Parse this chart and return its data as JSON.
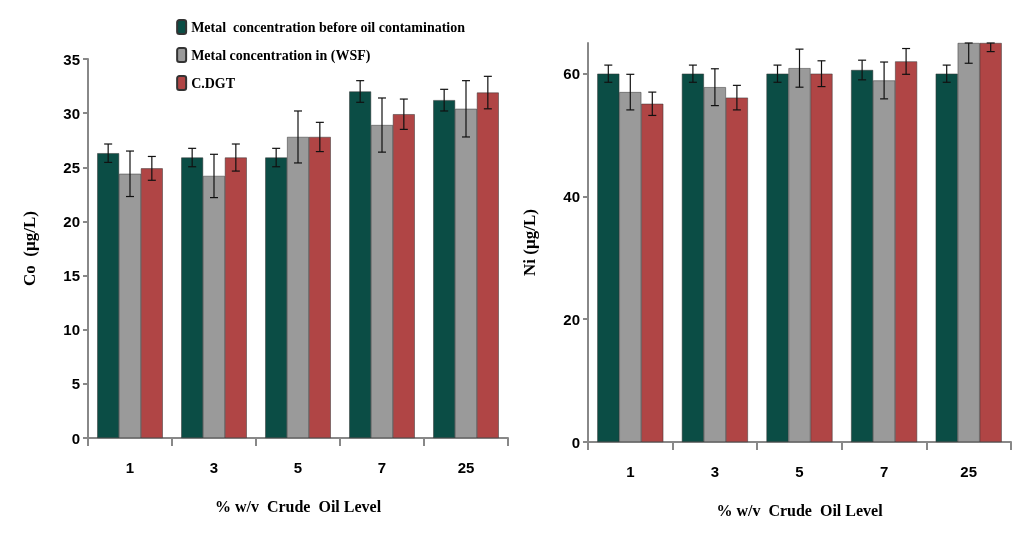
{
  "chart_data": [
    {
      "type": "bar",
      "xlabel": "% w/v  Crude  Oil Level",
      "ylabel": "Co  (µg/L)",
      "categories": [
        "1",
        "3",
        "5",
        "7",
        "25"
      ],
      "ylim": [
        0,
        35
      ],
      "yticks": [
        0,
        5,
        10,
        15,
        20,
        25,
        30,
        35
      ],
      "grid": false,
      "legend": "top right",
      "series": [
        {
          "name": "Metal  concentration before oil contamination",
          "color": "#0b4d45",
          "values": [
            26.3,
            25.9,
            25.9,
            32.0,
            31.2
          ],
          "errors": [
            0.85,
            0.85,
            0.85,
            1,
            1
          ]
        },
        {
          "name": "Metal concentration in (WSF)",
          "color": "#9a9a9a",
          "values": [
            24.4,
            24.2,
            27.8,
            28.9,
            30.4
          ],
          "errors": [
            2.1,
            2,
            2.4,
            2.5,
            2.6
          ]
        },
        {
          "name": "C.DGT",
          "color": "#b04545",
          "values": [
            24.9,
            25.9,
            27.8,
            29.9,
            31.9
          ],
          "errors": [
            1.1,
            1.25,
            1.35,
            1.4,
            1.5
          ]
        }
      ]
    },
    {
      "type": "bar",
      "xlabel": "% w/v  Crude  Oil Level",
      "ylabel": "Ni (µg/L)",
      "categories": [
        "1",
        "3",
        "5",
        "7",
        "25"
      ],
      "ylim": [
        0,
        65
      ],
      "yticks": [
        0,
        20,
        40,
        60
      ],
      "grid": false,
      "legend": false,
      "series": [
        {
          "color": "#0b4d45",
          "values": [
            60,
            60,
            60,
            60.6,
            60
          ],
          "errors": [
            1.4,
            1.4,
            1.4,
            1.6,
            1.4
          ]
        },
        {
          "color": "#9a9a9a",
          "values": [
            57.0,
            57.8,
            60.9,
            58.9,
            65
          ],
          "errors": [
            2.9,
            3,
            3.1,
            3,
            [
              61.7,
              65
            ]
          ]
        },
        {
          "color": "#b04545",
          "values": [
            55.1,
            56.1,
            60,
            62,
            65
          ],
          "errors": [
            1.9,
            2,
            2.1,
            2.1,
            [
              63.6,
              65
            ]
          ]
        }
      ]
    }
  ]
}
